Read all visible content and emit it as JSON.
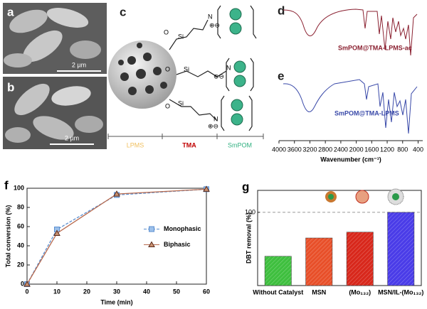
{
  "sem": [
    {
      "label": "a",
      "scale": "2 µm"
    },
    {
      "label": "b",
      "scale": "2 µm"
    }
  ],
  "scheme": {
    "label": "c",
    "si": "Si",
    "n": "N",
    "o": "O",
    "charge": "⊕⊖",
    "parts": [
      "LPMS",
      "TMA",
      "SmPOM"
    ]
  },
  "spectra": {
    "labels": [
      "d",
      "e"
    ],
    "samples": [
      "SmPOM@TMA-LPMS-ac",
      "SmPOM@TMA-LPMS"
    ],
    "xlabel": "Wavenumber (cm⁻¹)",
    "xlim": [
      4000,
      280
    ],
    "xticks": [
      4000,
      3600,
      3200,
      2800,
      2400,
      2000,
      1600,
      1200,
      800,
      400
    ]
  },
  "chart_data": [
    {
      "type": "line",
      "label": "f",
      "xlabel": "Time (min)",
      "ylabel": "Total conversion (%)",
      "x": [
        0,
        10,
        30,
        60
      ],
      "series": [
        {
          "name": "Monophasic",
          "color": "#5b8fd0",
          "marker": "square",
          "linestyle": "dashed",
          "values": [
            0,
            57,
            93,
            99
          ]
        },
        {
          "name": "Biphasic",
          "color": "#b86a4e",
          "marker": "triangle",
          "linestyle": "solid",
          "values": [
            0,
            53,
            94,
            99
          ]
        }
      ],
      "xlim": [
        0,
        60
      ],
      "xticks": [
        0,
        10,
        20,
        30,
        40,
        50,
        60
      ],
      "ylim": [
        0,
        100
      ],
      "yticks": [
        0,
        20,
        40,
        60,
        80,
        100
      ],
      "legend": "center right"
    },
    {
      "type": "bar",
      "label": "g",
      "ylabel": "DBT removal (%)",
      "categories": [
        "Without Catalyst",
        "MSN",
        "(Mo₁₃₂)",
        "MSN/IL-(Mo₁₃₂)"
      ],
      "values": [
        40,
        65,
        73,
        100
      ],
      "colors": [
        "#3fbf3f",
        "#e8502a",
        "#d8281c",
        "#4a3ce8"
      ],
      "ylim": [
        0,
        130
      ],
      "yticks": [
        100
      ],
      "reference_line": 100
    }
  ]
}
